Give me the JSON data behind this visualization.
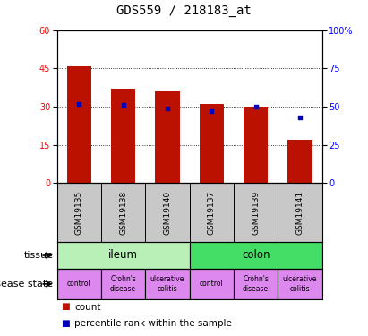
{
  "title": "GDS559 / 218183_at",
  "samples": [
    "GSM19135",
    "GSM19138",
    "GSM19140",
    "GSM19137",
    "GSM19139",
    "GSM19141"
  ],
  "count_values": [
    46,
    37,
    36,
    31,
    30,
    17
  ],
  "percentile_values": [
    52,
    51,
    49,
    47,
    50,
    43
  ],
  "tissue_groups": [
    {
      "label": "ileum",
      "span": [
        0,
        3
      ],
      "color": "#B8F0B8"
    },
    {
      "label": "colon",
      "span": [
        3,
        6
      ],
      "color": "#44DD66"
    }
  ],
  "disease_states": [
    {
      "label": "control",
      "col": 0
    },
    {
      "label": "Crohn's\ndisease",
      "col": 1
    },
    {
      "label": "ulcerative\ncolitis",
      "col": 2
    },
    {
      "label": "control",
      "col": 3
    },
    {
      "label": "Crohn's\ndisease",
      "col": 4
    },
    {
      "label": "ulcerative\ncolitis",
      "col": 5
    }
  ],
  "disease_color": "#DD88EE",
  "xlabel_bg": "#C8C8C8",
  "bar_color": "#BB1100",
  "percentile_color": "#0000BB",
  "ylim_left": [
    0,
    60
  ],
  "ylim_right": [
    0,
    100
  ],
  "yticks_left": [
    0,
    15,
    30,
    45,
    60
  ],
  "yticks_right": [
    0,
    25,
    50,
    75,
    100
  ],
  "dotted_lines": [
    15,
    30,
    45
  ]
}
